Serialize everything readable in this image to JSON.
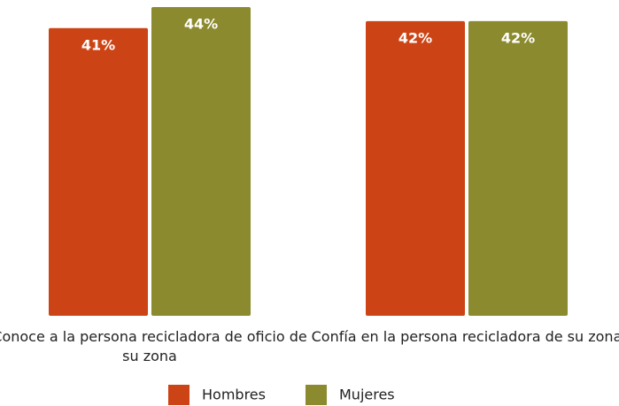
{
  "chart_data": {
    "type": "bar",
    "categories": [
      "Conoce a la persona recicladora de oficio de su zona",
      "Confía en la persona recicladora de su zona"
    ],
    "series": [
      {
        "name": "Hombres",
        "color": "#cc4415",
        "values": [
          41,
          42
        ],
        "value_labels": [
          "41%",
          "42%"
        ]
      },
      {
        "name": "Mujeres",
        "color": "#8b8a2e",
        "values": [
          44,
          42
        ],
        "value_labels": [
          "44%",
          "42%"
        ]
      }
    ]
  }
}
